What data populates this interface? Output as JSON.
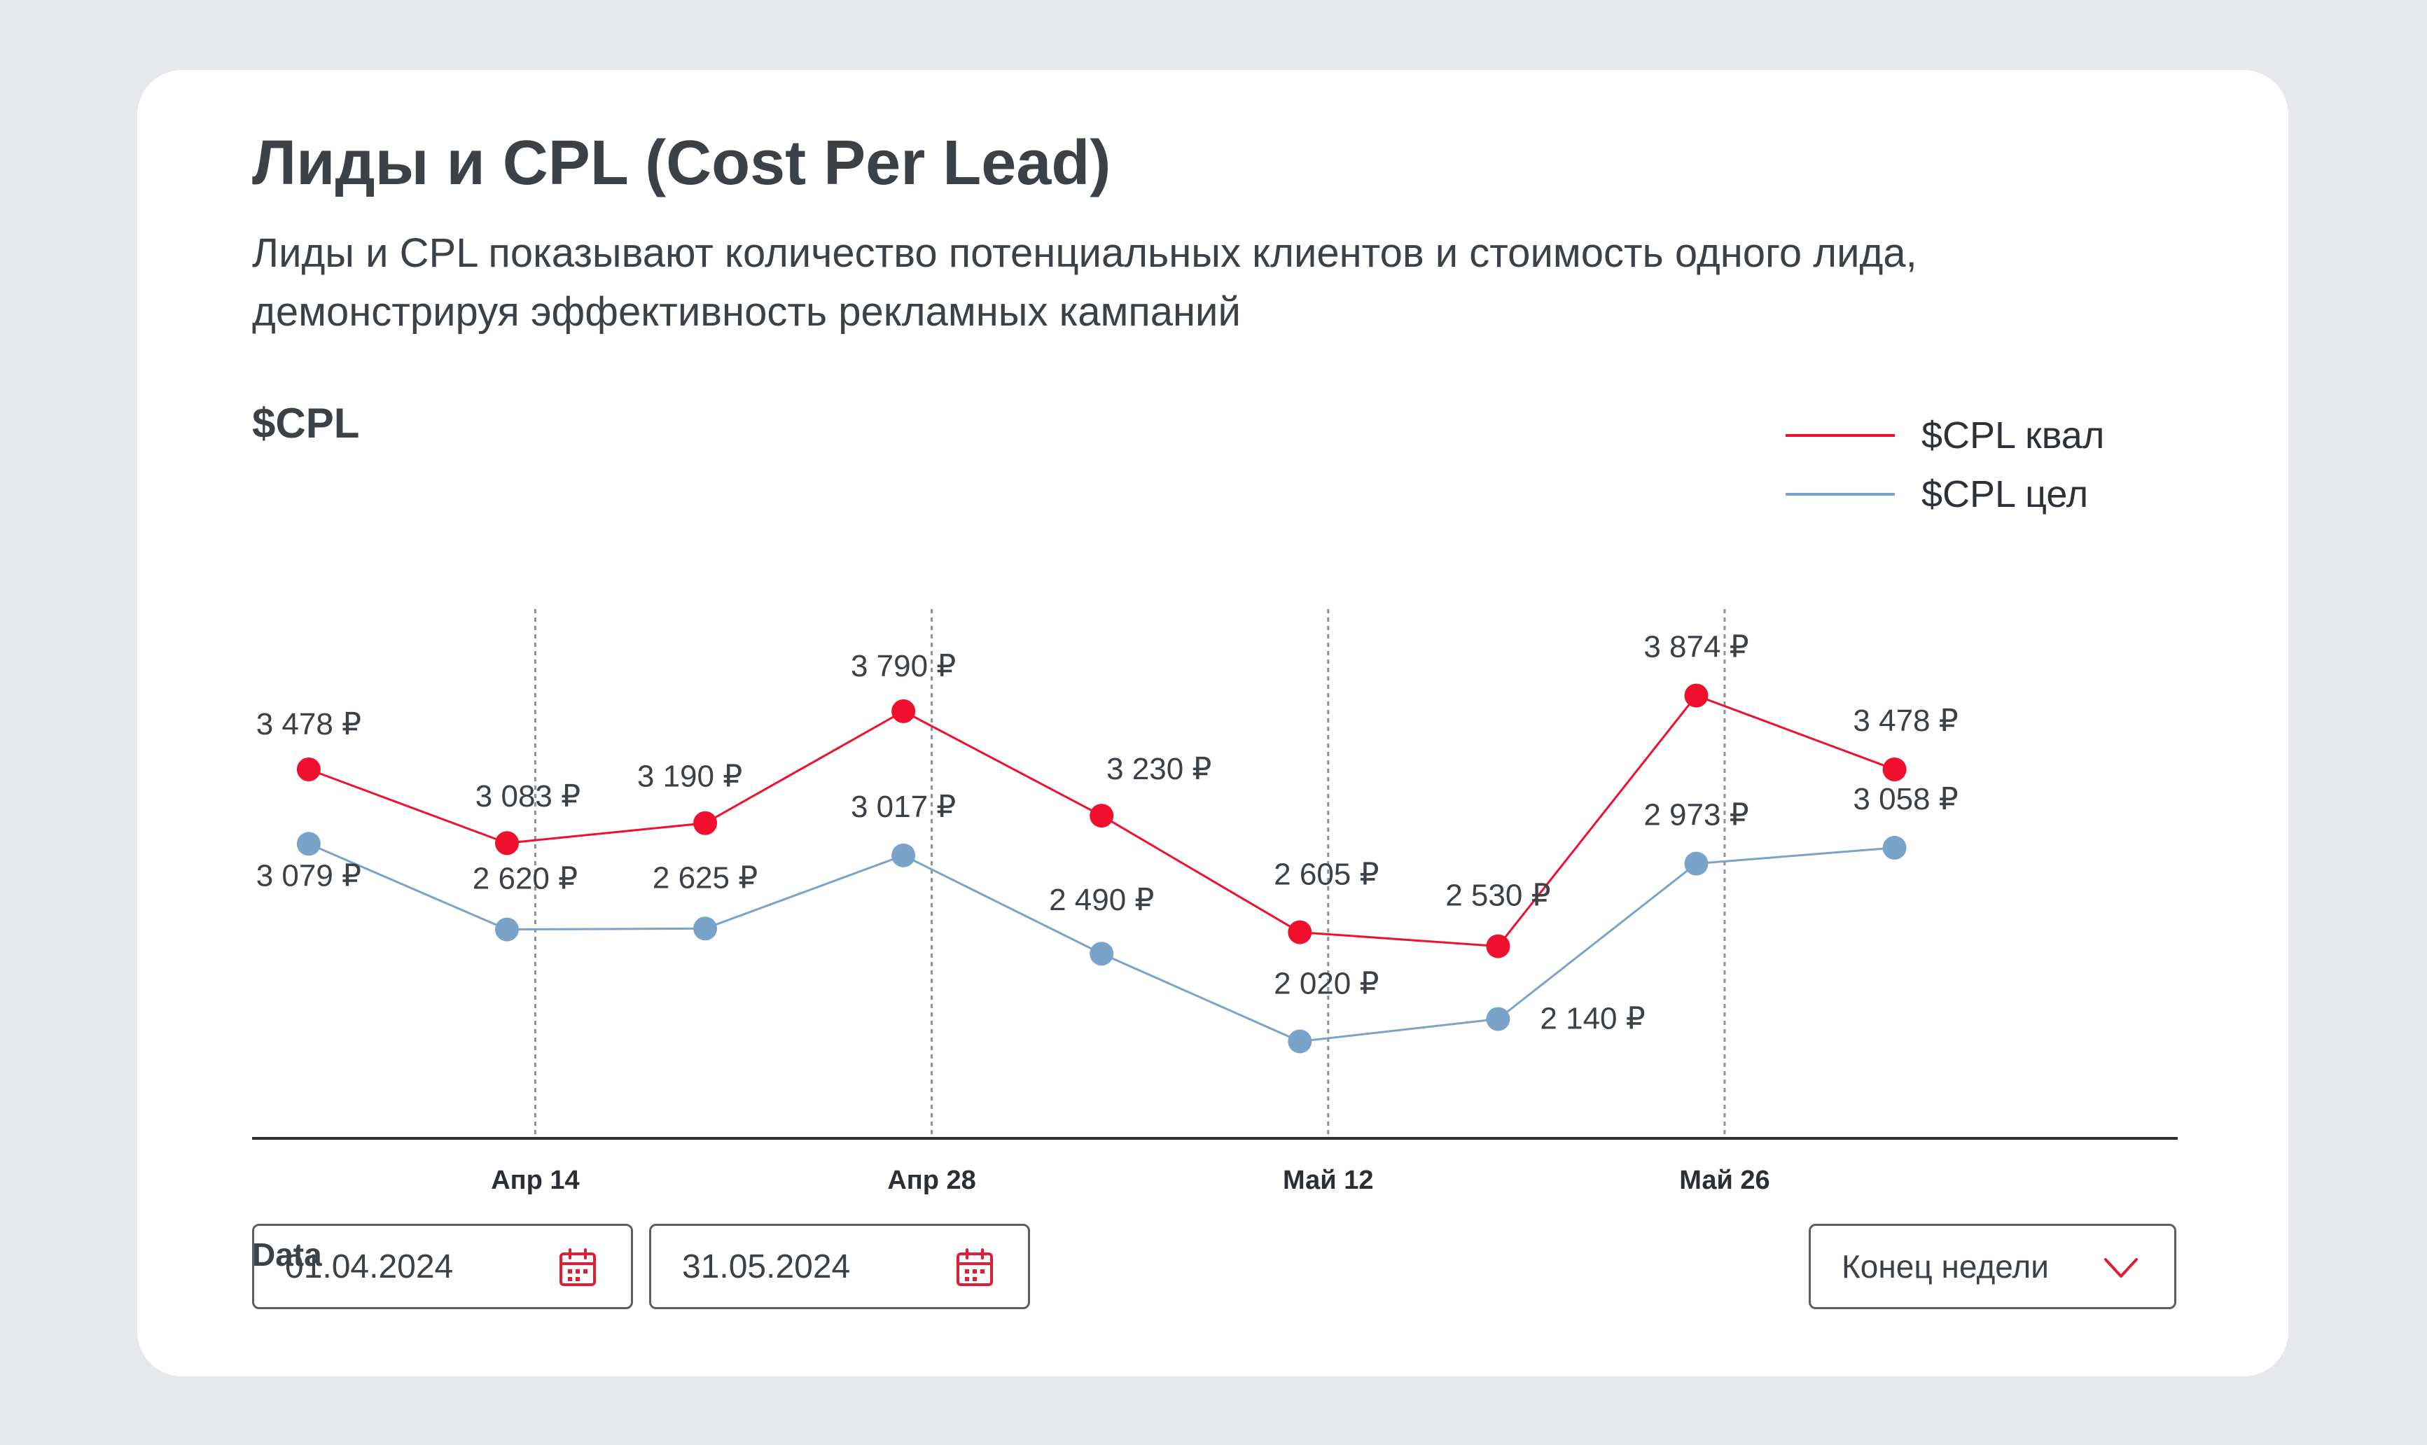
{
  "card": {
    "title": "Лиды и CPL (Cost Per Lead)",
    "subtitle": "Лиды и CPL показывают количество потенциальных клиентов и стоимость одного лида, демонстрируя эффективность рекламных кампаний"
  },
  "colors": {
    "qual": "#f0102d",
    "target": "#7aa3c9",
    "accent": "#e11d34",
    "axis": "#2b2f35"
  },
  "chart_data": {
    "type": "line",
    "title": "$CPL",
    "legend_position": "top-right",
    "grid": "vertical dotted lines at tick dates",
    "x_range": [
      "2024-04-04",
      "2024-06-11"
    ],
    "y_range": [
      1500,
      4300
    ],
    "x": [
      "2024-04-06",
      "2024-04-13",
      "2024-04-20",
      "2024-04-27",
      "2024-05-04",
      "2024-05-11",
      "2024-05-18",
      "2024-05-25",
      "2024-06-01"
    ],
    "series": [
      {
        "name": "$CPL квал",
        "color": "#f0102d",
        "values": [
          3478,
          3083,
          3190,
          3790,
          3230,
          2605,
          2530,
          3874,
          3478
        ],
        "labels": [
          "3 478 ₽",
          "3 083 ₽",
          "3 190 ₽",
          "3 790 ₽",
          "3 230 ₽",
          "2 605 ₽",
          "2 530 ₽",
          "3 874 ₽",
          "3 478 ₽"
        ]
      },
      {
        "name": "$CPL цел",
        "color": "#7aa3c9",
        "values": [
          3079,
          2620,
          2625,
          3017,
          2490,
          2020,
          2140,
          2973,
          3058
        ],
        "labels": [
          "3 079 ₽",
          "2 620 ₽",
          "2 625 ₽",
          "3 017 ₽",
          "2 490 ₽",
          "2 020 ₽",
          "2 140 ₽",
          "2 973 ₽",
          "3 058 ₽"
        ]
      }
    ],
    "x_ticks": [
      {
        "date": "2024-04-14",
        "label": "Апр 14"
      },
      {
        "date": "2024-04-28",
        "label": "Апр 28"
      },
      {
        "date": "2024-05-12",
        "label": "Май 12"
      },
      {
        "date": "2024-05-26",
        "label": "Май 26"
      }
    ]
  },
  "filters": {
    "label": "Data",
    "date_from": "01.04.2024",
    "date_to": "31.05.2024",
    "calendar_icon": "calendar-icon",
    "period_select": "Конец недели",
    "chevron_icon": "chevron-down-icon"
  }
}
